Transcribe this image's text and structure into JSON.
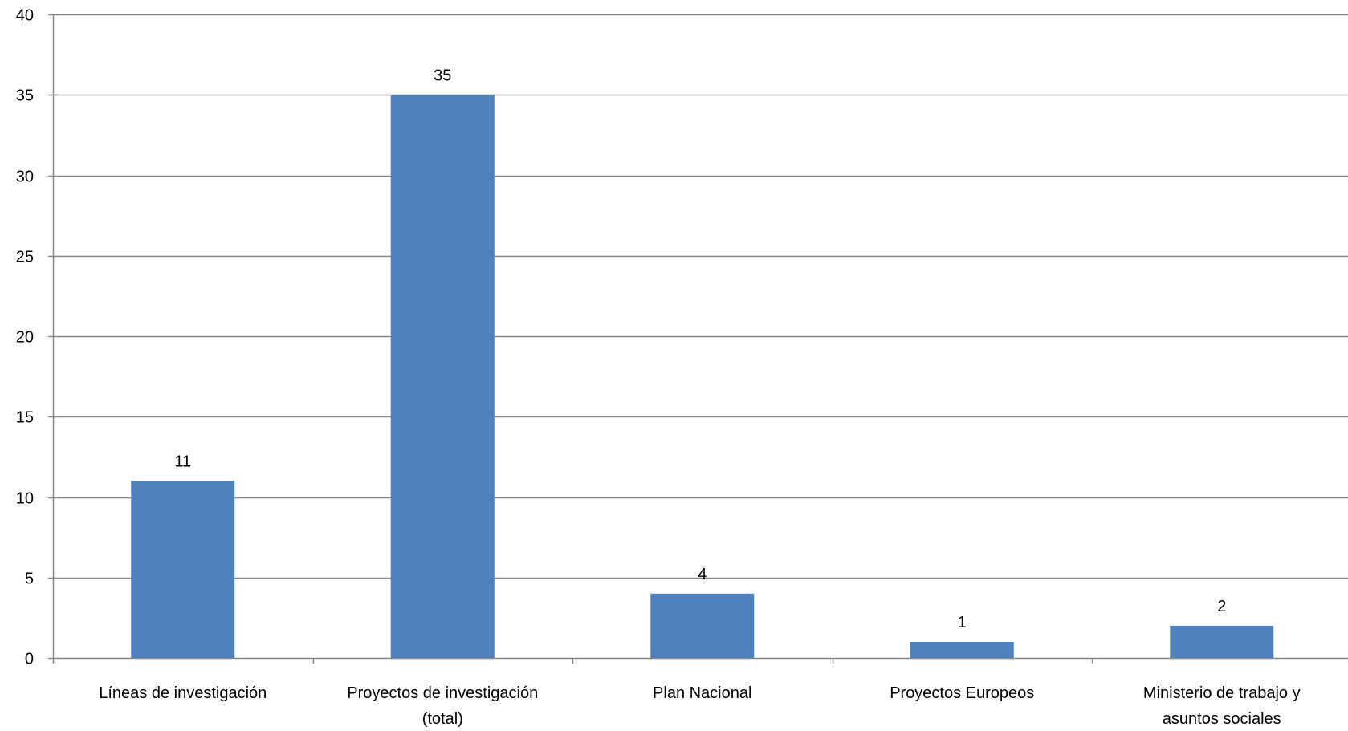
{
  "chart_data": {
    "type": "bar",
    "title": "",
    "xlabel": "",
    "ylabel": "",
    "categories": [
      [
        "Líneas de investigación"
      ],
      [
        "Proyectos de investigación",
        "(total)"
      ],
      [
        "Plan Nacional"
      ],
      [
        "Proyectos Europeos"
      ],
      [
        "Ministerio de trabajo y",
        "asuntos sociales"
      ]
    ],
    "values": [
      11,
      35,
      4,
      1,
      2
    ],
    "value_labels": [
      "11",
      "35",
      "4",
      "1",
      "2"
    ],
    "ylim": [
      0,
      40
    ],
    "yticks": [
      "0",
      "5",
      "10",
      "15",
      "20",
      "25",
      "30",
      "35",
      "40"
    ],
    "grid": true,
    "legend": "none",
    "bar_color": "#4f81bd",
    "grid_color": "#868686",
    "axis_color": "#868686"
  }
}
